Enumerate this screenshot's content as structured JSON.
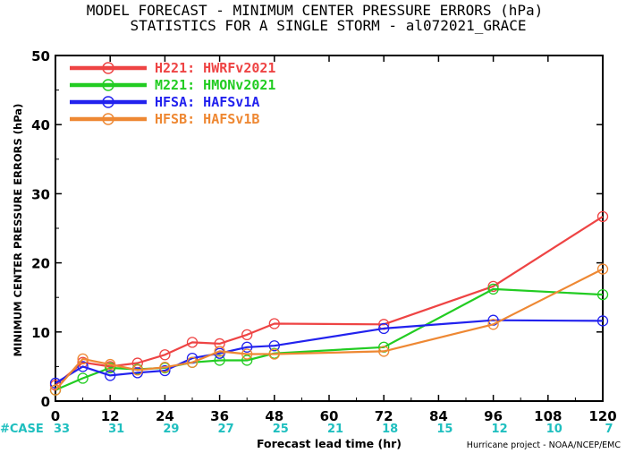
{
  "titles": {
    "line1": "MODEL FORECAST - MINIMUM CENTER PRESSURE ERRORS (hPa)",
    "line2": "STATISTICS FOR A SINGLE STORM - al072021_GRACE"
  },
  "case_label": "#CASE",
  "case_counts": [
    {
      "x": 0,
      "n": "33"
    },
    {
      "x": 12,
      "n": "31"
    },
    {
      "x": 24,
      "n": "29"
    },
    {
      "x": 36,
      "n": "27"
    },
    {
      "x": 48,
      "n": "25"
    },
    {
      "x": 60,
      "n": "21"
    },
    {
      "x": 72,
      "n": "18"
    },
    {
      "x": 84,
      "n": "15"
    },
    {
      "x": 96,
      "n": "12"
    },
    {
      "x": 108,
      "n": "10"
    },
    {
      "x": 120,
      "n": "7"
    }
  ],
  "credit": "Hurricane project - NOAA/NCEP/EMC",
  "colors": {
    "case_counts": "#1fbfbf",
    "case_label": "#1fbfbf"
  },
  "chart_data": {
    "type": "line",
    "xlabel": "Forecast lead time (hr)",
    "ylabel": "MINIMUM CENTER PRESSURE ERRORS (hPa)",
    "xlim": [
      0,
      120
    ],
    "ylim": [
      0,
      50
    ],
    "xticks": [
      "0",
      "12",
      "24",
      "36",
      "48",
      "60",
      "72",
      "84",
      "96",
      "108",
      "120"
    ],
    "yticks": [
      "0",
      "10",
      "20",
      "30",
      "40",
      "50"
    ],
    "grid": false,
    "legend_position": "top-left",
    "series": [
      {
        "name": "H221: HWRFv2021",
        "color": "#ee4444",
        "x": [
          0,
          6,
          12,
          18,
          24,
          30,
          36,
          42,
          48,
          72,
          96,
          120
        ],
        "values": [
          2.3,
          5.6,
          5.0,
          5.5,
          6.7,
          8.5,
          8.3,
          9.6,
          11.2,
          11.1,
          16.6,
          26.7
        ]
      },
      {
        "name": "M221: HMONv2021",
        "color": "#22cc22",
        "x": [
          0,
          6,
          12,
          18,
          24,
          30,
          36,
          42,
          48,
          72,
          96,
          120
        ],
        "values": [
          1.6,
          3.3,
          4.8,
          4.6,
          4.8,
          5.6,
          5.9,
          5.9,
          6.9,
          7.8,
          16.2,
          15.4
        ]
      },
      {
        "name": "HFSA: HAFSv1A",
        "color": "#2222ee",
        "x": [
          0,
          6,
          12,
          18,
          24,
          30,
          36,
          42,
          48,
          72,
          96,
          120
        ],
        "values": [
          2.6,
          5.0,
          3.7,
          4.1,
          4.4,
          6.2,
          6.9,
          7.8,
          8.0,
          10.5,
          11.7,
          11.6
        ]
      },
      {
        "name": "HFSB: HAFSv1B",
        "color": "#ee8833",
        "x": [
          0,
          6,
          12,
          18,
          24,
          30,
          36,
          42,
          48,
          72,
          96,
          120
        ],
        "values": [
          1.6,
          6.1,
          5.3,
          4.5,
          4.9,
          5.6,
          7.2,
          6.8,
          6.8,
          7.2,
          11.1,
          19.1
        ]
      }
    ]
  }
}
